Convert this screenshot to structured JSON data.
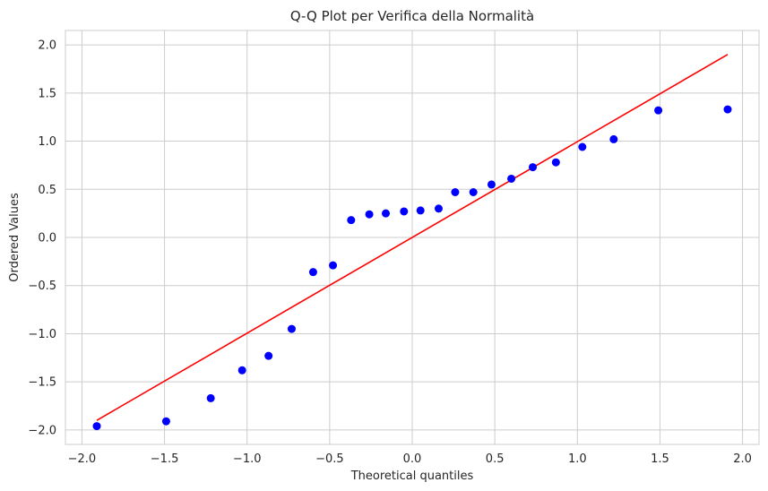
{
  "chart_data": {
    "type": "scatter",
    "title": "Q-Q Plot per Verifica della Normalità",
    "xlabel": "Theoretical quantiles",
    "ylabel": "Ordered Values",
    "xlim": [
      -2.1,
      2.1
    ],
    "ylim": [
      -2.15,
      2.15
    ],
    "x_ticks": [
      -2.0,
      -1.5,
      -1.0,
      -0.5,
      0.0,
      0.5,
      1.0,
      1.5,
      2.0
    ],
    "x_tick_labels": [
      "−2.0",
      "−1.5",
      "−1.0",
      "−0.5",
      "0.0",
      "0.5",
      "1.0",
      "1.5",
      "2.0"
    ],
    "y_ticks": [
      -2.0,
      -1.5,
      -1.0,
      -0.5,
      0.0,
      0.5,
      1.0,
      1.5,
      2.0
    ],
    "y_tick_labels": [
      "−2.0",
      "−1.5",
      "−1.0",
      "−0.5",
      "0.0",
      "0.5",
      "1.0",
      "1.5",
      "2.0"
    ],
    "grid": true,
    "series": [
      {
        "kind": "points",
        "color": "#0000ff",
        "x": [
          -1.91,
          -1.49,
          -1.22,
          -1.03,
          -0.87,
          -0.73,
          -0.6,
          -0.48,
          -0.37,
          -0.26,
          -0.16,
          -0.05,
          0.05,
          0.16,
          0.26,
          0.37,
          0.48,
          0.6,
          0.73,
          0.87,
          1.03,
          1.22,
          1.49,
          1.91
        ],
        "y": [
          -1.96,
          -1.91,
          -1.67,
          -1.38,
          -1.23,
          -0.95,
          -0.36,
          -0.29,
          0.18,
          0.24,
          0.25,
          0.27,
          0.28,
          0.3,
          0.47,
          0.47,
          0.55,
          0.61,
          0.73,
          0.78,
          0.94,
          1.02,
          1.32,
          1.33
        ]
      },
      {
        "kind": "line",
        "color": "#ff0000",
        "x": [
          -1.91,
          1.91
        ],
        "y": [
          -1.9,
          1.9
        ]
      }
    ]
  }
}
